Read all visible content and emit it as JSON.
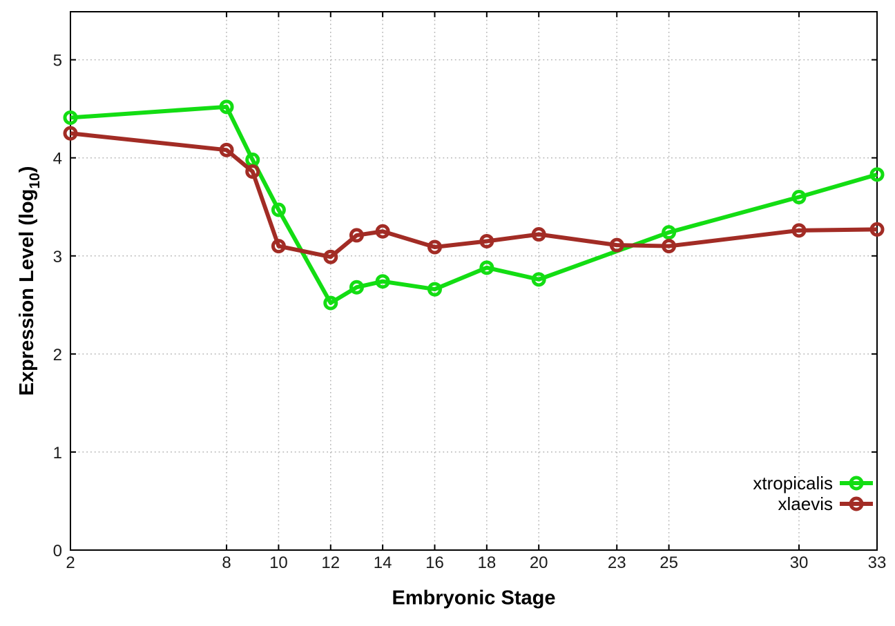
{
  "chart_data": {
    "type": "line",
    "title": "",
    "xlabel": "Embryonic Stage",
    "ylabel": "Expression Level (log10)",
    "ylabel_parts": {
      "main": "Expression Level (log",
      "sub": "10",
      "end": ")"
    },
    "xlim": [
      2,
      33
    ],
    "ylim": [
      0,
      5.49
    ],
    "x_ticks": [
      2,
      8,
      10,
      12,
      14,
      16,
      18,
      20,
      23,
      25,
      30,
      33
    ],
    "y_ticks": [
      0,
      1,
      2,
      3,
      4,
      5
    ],
    "grid": true,
    "legend_position": "inside-bottom-right",
    "series": [
      {
        "name": "xtropicalis",
        "color": "#13dd13",
        "x": [
          2,
          8,
          9,
          10,
          12,
          13,
          14,
          16,
          18,
          20,
          25,
          30,
          33
        ],
        "y": [
          4.41,
          4.52,
          3.98,
          3.47,
          2.52,
          2.68,
          2.74,
          2.66,
          2.88,
          2.76,
          3.24,
          3.6,
          3.83
        ]
      },
      {
        "name": "xlaevis",
        "color": "#a22c25",
        "x": [
          2,
          8,
          9,
          10,
          12,
          13,
          14,
          16,
          18,
          20,
          23,
          25,
          30,
          33
        ],
        "y": [
          4.25,
          4.08,
          3.86,
          3.1,
          2.99,
          3.21,
          3.25,
          3.09,
          3.15,
          3.22,
          3.11,
          3.1,
          3.26,
          3.27
        ]
      }
    ]
  },
  "style": {
    "background": "#ffffff",
    "border_color": "#000000",
    "grid_color": "#b5b5b5",
    "tick_label_color": "#1b1b1b"
  }
}
